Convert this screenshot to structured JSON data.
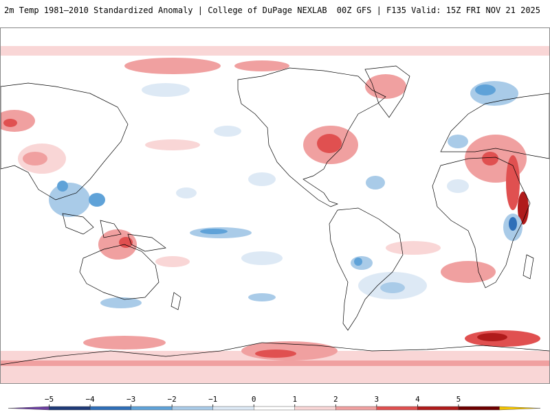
{
  "header": {
    "left_title": "2m Temp 1981–2010 Standardized Anomaly | College of DuPage NEXLAB",
    "right_title": "00Z GFS | F135 Valid: 15Z FRI NOV 21 2025"
  },
  "colorbar": {
    "ticks": [
      {
        "label": "−5",
        "value": -5
      },
      {
        "label": "−4",
        "value": -4
      },
      {
        "label": "−3",
        "value": -3
      },
      {
        "label": "−2",
        "value": -2
      },
      {
        "label": "−1",
        "value": -1
      },
      {
        "label": "0",
        "value": 0
      },
      {
        "label": "1",
        "value": 1
      },
      {
        "label": "2",
        "value": 2
      },
      {
        "label": "3",
        "value": 3
      },
      {
        "label": "4",
        "value": 4
      },
      {
        "label": "5",
        "value": 5
      }
    ],
    "bins": [
      {
        "from": -6,
        "to": -5,
        "color": "#6b3fa0"
      },
      {
        "from": -5,
        "to": -4,
        "color": "#1f3a78"
      },
      {
        "from": -4,
        "to": -3,
        "color": "#2f6fb8"
      },
      {
        "from": -3,
        "to": -2,
        "color": "#5fa2d8"
      },
      {
        "from": -2,
        "to": -1,
        "color": "#a9cbe8"
      },
      {
        "from": -1,
        "to": 0,
        "color": "#dde9f5"
      },
      {
        "from": 0,
        "to": 1,
        "color": "#ffffff"
      },
      {
        "from": 1,
        "to": 2,
        "color": "#f9d6d6"
      },
      {
        "from": 2,
        "to": 3,
        "color": "#f0a0a0"
      },
      {
        "from": 3,
        "to": 4,
        "color": "#e05050"
      },
      {
        "from": 4,
        "to": 5,
        "color": "#b01b1b"
      },
      {
        "from": 5,
        "to": 6,
        "color": "#6e0000"
      },
      {
        "from": 6,
        "to": 7,
        "color": "#f2c300"
      }
    ]
  },
  "colors": {
    "warm_light": "#f9d6d6",
    "warm_mid": "#f0a0a0",
    "warm_strong": "#e05050",
    "warm_extreme": "#b01b1b",
    "cool_light": "#dde9f5",
    "cool_mid": "#a9cbe8",
    "cool_strong": "#5fa2d8",
    "cool_extreme": "#2f6fb8",
    "coastline": "#000000"
  }
}
